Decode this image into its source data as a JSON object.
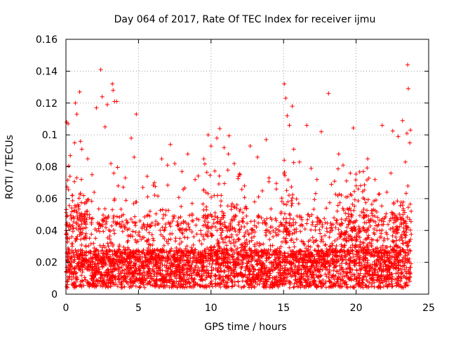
{
  "chart_data": {
    "type": "scatter",
    "title": "Day 064 of 2017, Rate Of TEC Index for receiver ijmu",
    "xlabel": "GPS time / hours",
    "ylabel": "ROTI / TECUs",
    "xlim": [
      0,
      25
    ],
    "ylim": [
      0,
      0.16
    ],
    "xticks": [
      0,
      5,
      10,
      15,
      20,
      25
    ],
    "xtick_labels": [
      "0",
      "5",
      "10",
      "15",
      "20",
      "25"
    ],
    "yticks": [
      0,
      0.02,
      0.04,
      0.06,
      0.08,
      0.1,
      0.12,
      0.14,
      0.16
    ],
    "ytick_labels": [
      "0",
      "0.02",
      "0.04",
      "0.06",
      "0.08",
      "0.1",
      "0.12",
      "0.14",
      "0.16"
    ],
    "grid": true,
    "marker": "+",
    "series_color": "#ff0000",
    "series": [
      {
        "name": "ROTI",
        "points": [
          [
            0.05,
            0.108
          ],
          [
            0.15,
            0.107
          ],
          [
            0.3,
            0.087
          ],
          [
            0.45,
            0.062
          ],
          [
            0.6,
            0.095
          ],
          [
            0.65,
            0.12
          ],
          [
            0.75,
            0.113
          ],
          [
            0.95,
            0.127
          ],
          [
            1.0,
            0.096
          ],
          [
            1.1,
            0.091
          ],
          [
            1.5,
            0.085
          ],
          [
            1.8,
            0.075
          ],
          [
            2.1,
            0.117
          ],
          [
            2.4,
            0.141
          ],
          [
            2.5,
            0.124
          ],
          [
            2.7,
            0.105
          ],
          [
            2.85,
            0.119
          ],
          [
            3.2,
            0.132
          ],
          [
            3.25,
            0.128
          ],
          [
            3.35,
            0.121
          ],
          [
            3.5,
            0.121
          ],
          [
            3.1,
            0.082
          ],
          [
            3.3,
            0.076
          ],
          [
            3.6,
            0.068
          ],
          [
            4.5,
            0.098
          ],
          [
            4.7,
            0.086
          ],
          [
            4.85,
            0.113
          ],
          [
            5.3,
            0.067
          ],
          [
            5.6,
            0.074
          ],
          [
            6.1,
            0.07
          ],
          [
            6.6,
            0.085
          ],
          [
            7.0,
            0.081
          ],
          [
            7.2,
            0.094
          ],
          [
            7.5,
            0.082
          ],
          [
            8.0,
            0.077
          ],
          [
            8.4,
            0.088
          ],
          [
            8.9,
            0.072
          ],
          [
            9.5,
            0.085
          ],
          [
            9.8,
            0.1
          ],
          [
            10.0,
            0.093
          ],
          [
            10.4,
            0.098
          ],
          [
            10.6,
            0.104
          ],
          [
            10.9,
            0.092
          ],
          [
            11.2,
            0.088
          ],
          [
            11.6,
            0.082
          ],
          [
            12.0,
            0.075
          ],
          [
            12.3,
            0.068
          ],
          [
            12.7,
            0.093
          ],
          [
            13.2,
            0.086
          ],
          [
            13.8,
            0.097
          ],
          [
            14.0,
            0.073
          ],
          [
            14.5,
            0.066
          ],
          [
            15.05,
            0.132
          ],
          [
            15.15,
            0.123
          ],
          [
            15.25,
            0.112
          ],
          [
            15.4,
            0.106
          ],
          [
            15.6,
            0.118
          ],
          [
            15.7,
            0.091
          ],
          [
            16.1,
            0.083
          ],
          [
            16.6,
            0.106
          ],
          [
            16.9,
            0.079
          ],
          [
            17.3,
            0.072
          ],
          [
            17.6,
            0.102
          ],
          [
            18.1,
            0.126
          ],
          [
            18.3,
            0.069
          ],
          [
            18.8,
            0.088
          ],
          [
            19.1,
            0.081
          ],
          [
            19.6,
            0.076
          ],
          [
            20.0,
            0.068
          ],
          [
            20.5,
            0.077
          ],
          [
            20.8,
            0.085
          ],
          [
            21.3,
            0.072
          ],
          [
            21.8,
            0.106
          ],
          [
            22.4,
            0.076
          ],
          [
            22.9,
            0.099
          ],
          [
            23.2,
            0.109
          ],
          [
            23.5,
            0.101
          ],
          [
            23.55,
            0.144
          ],
          [
            23.6,
            0.129
          ],
          [
            23.7,
            0.095
          ],
          [
            23.75,
            0.103
          ],
          [
            23.4,
            0.083
          ],
          [
            12.4,
            0.055
          ],
          [
            10.7,
            0.062
          ],
          [
            15.3,
            0.058
          ],
          [
            5.8,
            0.052
          ],
          [
            1.4,
            0.058
          ],
          [
            19.3,
            0.061
          ],
          [
            21.6,
            0.063
          ],
          [
            8.7,
            0.057
          ]
        ]
      }
    ],
    "dense_band": {
      "x_range": [
        0,
        23.8
      ],
      "y_typical_range": [
        0.004,
        0.045
      ]
    }
  }
}
